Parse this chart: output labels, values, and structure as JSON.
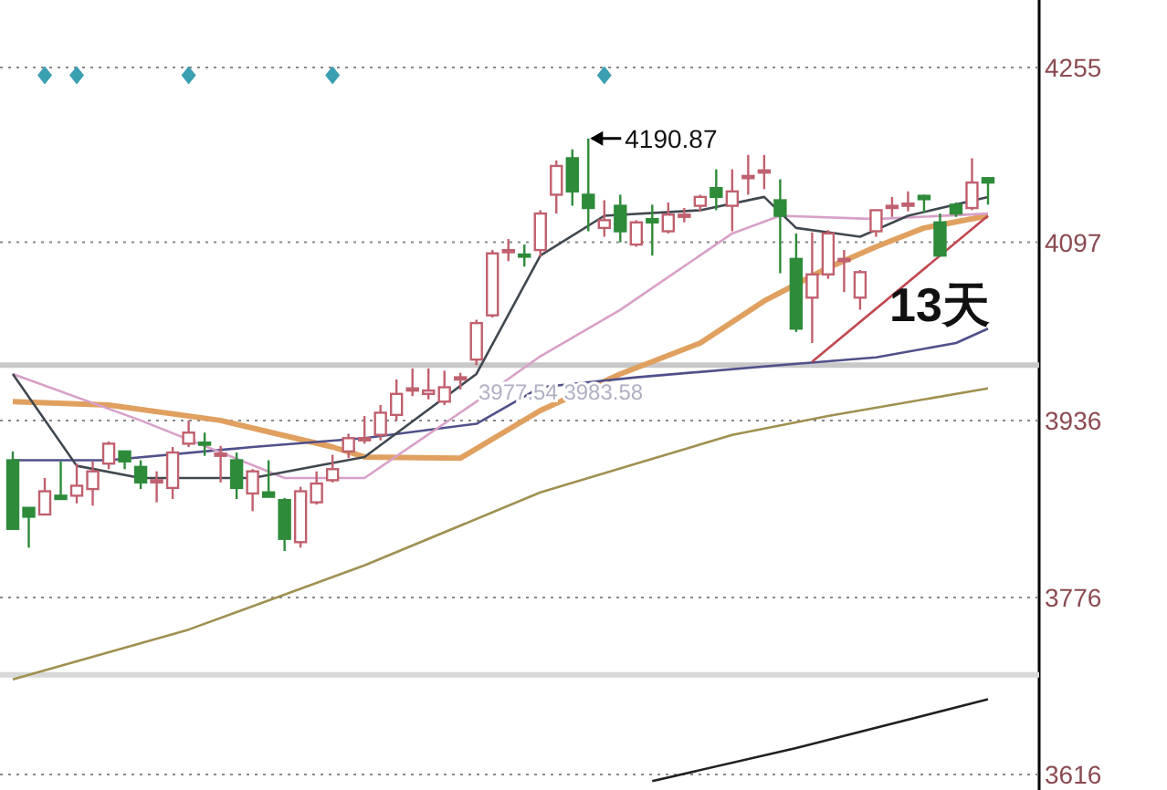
{
  "chart_data": {
    "type": "candlestick",
    "categories": [
      null,
      null,
      null,
      null,
      null,
      null,
      null,
      null,
      null,
      null,
      null,
      null,
      null,
      null,
      null,
      null,
      null,
      null,
      null,
      null,
      null,
      null,
      null,
      null,
      null,
      null,
      null,
      null,
      null,
      null,
      null,
      null,
      null,
      null,
      null,
      null,
      null,
      null,
      null,
      null,
      null,
      null,
      null,
      null,
      null,
      null,
      null,
      null,
      null,
      null,
      null,
      null,
      null,
      null,
      null,
      null,
      null,
      null,
      null,
      null,
      null,
      null
    ],
    "ohlc": [
      [
        3900,
        3908,
        3838,
        3838
      ],
      [
        3857,
        3857,
        3821,
        3849
      ],
      [
        3851,
        3884,
        3851,
        3872
      ],
      [
        3868,
        3899,
        3865,
        3865
      ],
      [
        3868,
        3897,
        3861,
        3877
      ],
      [
        3874,
        3899,
        3859,
        3890
      ],
      [
        3897,
        3917,
        3892,
        3915
      ],
      [
        3908,
        3908,
        3892,
        3899
      ],
      [
        3894,
        3900,
        3874,
        3880
      ],
      [
        3880,
        3890,
        3862,
        3882
      ],
      [
        3875,
        3912,
        3865,
        3907
      ],
      [
        3915,
        3936,
        3912,
        3925
      ],
      [
        3916,
        3925,
        3904,
        3915
      ],
      [
        3905,
        3913,
        3880,
        3906
      ],
      [
        3900,
        3907,
        3865,
        3875
      ],
      [
        3870,
        3892,
        3854,
        3890
      ],
      [
        3871,
        3900,
        3867,
        3867
      ],
      [
        3864,
        3866,
        3818,
        3829
      ],
      [
        3826,
        3876,
        3821,
        3872
      ],
      [
        3862,
        3890,
        3860,
        3879
      ],
      [
        3882,
        3905,
        3880,
        3892
      ],
      [
        3908,
        3924,
        3902,
        3920
      ],
      [
        3918,
        3940,
        3915,
        3920
      ],
      [
        3923,
        3950,
        3918,
        3943
      ],
      [
        3941,
        3973,
        3936,
        3960
      ],
      [
        3963,
        3983,
        3958,
        3965
      ],
      [
        3960,
        3983,
        3955,
        3963
      ],
      [
        3953,
        3981,
        3950,
        3966
      ],
      [
        3973,
        3979,
        3964,
        3975
      ],
      [
        3991,
        4027,
        3986,
        4024
      ],
      [
        4031,
        4090,
        4029,
        4087
      ],
      [
        4089,
        4100,
        4080,
        4090
      ],
      [
        4086,
        4095,
        4075,
        4084
      ],
      [
        4090,
        4126,
        4084,
        4123
      ],
      [
        4140,
        4171,
        4123,
        4166
      ],
      [
        4173,
        4181,
        4130,
        4143
      ],
      [
        4140,
        4190.87,
        4107,
        4128
      ],
      [
        4110,
        4135,
        4102,
        4117
      ],
      [
        4130,
        4140,
        4097,
        4107
      ],
      [
        4095,
        4117,
        4093,
        4115
      ],
      [
        4118,
        4131,
        4085,
        4115
      ],
      [
        4107,
        4133,
        4105,
        4122
      ],
      [
        4121,
        4128,
        4115,
        4122
      ],
      [
        4130,
        4140,
        4125,
        4138
      ],
      [
        4146,
        4163,
        4126,
        4138
      ],
      [
        4130,
        4163,
        4107,
        4143
      ],
      [
        4155,
        4176,
        4140,
        4157
      ],
      [
        4160,
        4176,
        4145,
        4162
      ],
      [
        4135,
        4154,
        4069,
        4121
      ],
      [
        4082,
        4105,
        4016,
        4019
      ],
      [
        4047,
        4106,
        4006,
        4068
      ],
      [
        4068,
        4108,
        4064,
        4105
      ],
      [
        4080,
        4090,
        4052,
        4082
      ],
      [
        4047,
        4072,
        4036,
        4070
      ],
      [
        4107,
        4126,
        4102,
        4126
      ],
      [
        4128,
        4138,
        4120,
        4130
      ],
      [
        4130,
        4143,
        4125,
        4132
      ],
      [
        4139,
        4140,
        4124,
        4136
      ],
      [
        4115,
        4123,
        4085,
        4085
      ],
      [
        4131,
        4133,
        4120,
        4123
      ],
      [
        4128,
        4173,
        4126,
        4151
      ],
      [
        4155,
        4155,
        4131,
        4151
      ]
    ],
    "series": [
      {
        "type": "line",
        "color": "#e0a060",
        "values": [
          3953,
          null,
          null,
          null,
          null,
          null,
          3950,
          null,
          null,
          null,
          null,
          null,
          null,
          3936,
          null,
          null,
          null,
          null,
          null,
          null,
          3912,
          null,
          3903,
          null,
          null,
          null,
          null,
          null,
          3902,
          null,
          null,
          null,
          null,
          3945,
          null,
          null,
          null,
          null,
          3978,
          null,
          null,
          null,
          null,
          4006,
          null,
          null,
          null,
          4044,
          null,
          null,
          null,
          4074,
          null,
          null,
          4093,
          null,
          null,
          4110,
          null,
          null,
          null,
          4121
        ]
      },
      {
        "type": "line",
        "color": "#50508a",
        "values": [
          3900,
          null,
          null,
          null,
          null,
          null,
          3900,
          null,
          null,
          null,
          null,
          null,
          null,
          null,
          null,
          3912,
          null,
          null,
          null,
          null,
          null,
          null,
          3920,
          null,
          null,
          null,
          null,
          null,
          null,
          3933,
          null,
          null,
          null,
          3966,
          null,
          null,
          null,
          null,
          null,
          3975,
          null,
          null,
          null,
          null,
          null,
          null,
          null,
          null,
          3986,
          null,
          null,
          null,
          null,
          null,
          3993,
          null,
          null,
          null,
          null,
          4006,
          null,
          4019
        ]
      },
      {
        "type": "line",
        "color": "#a09050",
        "values": [
          3702,
          null,
          null,
          null,
          null,
          null,
          null,
          null,
          null,
          null,
          null,
          3747,
          null,
          null,
          null,
          null,
          null,
          null,
          null,
          null,
          null,
          null,
          3805,
          null,
          null,
          null,
          null,
          null,
          null,
          null,
          null,
          null,
          null,
          3871,
          null,
          null,
          null,
          null,
          null,
          null,
          null,
          null,
          null,
          null,
          null,
          3923,
          null,
          null,
          null,
          null,
          null,
          3940,
          null,
          null,
          null,
          null,
          null,
          null,
          null,
          null,
          null,
          3965
        ]
      },
      {
        "type": "line",
        "color": "#202020",
        "values": [
          null,
          null,
          null,
          null,
          null,
          null,
          null,
          null,
          null,
          null,
          null,
          null,
          null,
          null,
          null,
          null,
          null,
          null,
          null,
          null,
          null,
          null,
          null,
          null,
          null,
          null,
          null,
          null,
          null,
          null,
          null,
          null,
          null,
          null,
          null,
          null,
          null,
          null,
          null,
          null,
          3610,
          null,
          null,
          null,
          null,
          null,
          null,
          null,
          null,
          3640,
          null,
          null,
          null,
          null,
          null,
          null,
          null,
          null,
          null,
          null,
          null,
          3684
        ]
      },
      {
        "type": "line",
        "color": "#d8a0c8",
        "values": [
          3978,
          null,
          null,
          null,
          null,
          null,
          null,
          null,
          3936,
          null,
          null,
          null,
          null,
          null,
          null,
          null,
          null,
          3884,
          null,
          null,
          null,
          null,
          3884,
          null,
          null,
          null,
          null,
          null,
          null,
          3953,
          null,
          null,
          null,
          3994,
          null,
          null,
          null,
          null,
          4036,
          null,
          null,
          null,
          null,
          null,
          null,
          4105,
          null,
          null,
          4121,
          null,
          null,
          null,
          null,
          null,
          4118,
          null,
          null,
          null,
          null,
          null,
          null,
          4123
        ]
      },
      {
        "type": "line",
        "color": "#404850",
        "values": [
          3978,
          null,
          null,
          null,
          3895,
          null,
          null,
          null,
          3884,
          null,
          null,
          null,
          null,
          null,
          null,
          3884,
          null,
          null,
          null,
          null,
          null,
          null,
          3903,
          null,
          null,
          null,
          null,
          null,
          null,
          3978,
          null,
          null,
          null,
          4085,
          null,
          null,
          null,
          4121,
          null,
          null,
          null,
          null,
          null,
          4126,
          null,
          null,
          null,
          4138,
          null,
          4110,
          null,
          null,
          null,
          4102,
          null,
          null,
          4121,
          null,
          null,
          null,
          null,
          4138
        ]
      },
      {
        "type": "line",
        "color": "#c04850",
        "values": [
          null,
          null,
          null,
          null,
          null,
          null,
          null,
          null,
          null,
          null,
          null,
          null,
          null,
          null,
          null,
          null,
          null,
          null,
          null,
          null,
          null,
          null,
          null,
          null,
          null,
          null,
          null,
          null,
          null,
          null,
          null,
          null,
          null,
          null,
          null,
          null,
          null,
          null,
          null,
          null,
          null,
          null,
          null,
          null,
          null,
          null,
          null,
          null,
          null,
          null,
          3989,
          null,
          null,
          null,
          null,
          null,
          null,
          null,
          null,
          null,
          null,
          4121
        ]
      },
      {
        "type": "scatter",
        "color": "#3a9fb0",
        "marker": "diamond",
        "values": [
          null,
          null,
          4248,
          null,
          4248,
          null,
          null,
          null,
          null,
          null,
          null,
          4248,
          null,
          null,
          null,
          null,
          null,
          null,
          null,
          null,
          4248,
          null,
          null,
          null,
          null,
          null,
          null,
          null,
          null,
          null,
          null,
          null,
          null,
          null,
          null,
          null,
          null,
          4248,
          null,
          null,
          null,
          null,
          null,
          null,
          null,
          null,
          null,
          null,
          null,
          null,
          null,
          null,
          null,
          null,
          null,
          null,
          null,
          null,
          null,
          null,
          null,
          null
        ]
      }
    ],
    "ref_lines": [
      {
        "axis": "y",
        "value": 3986,
        "color": "#c8c8c8"
      },
      {
        "axis": "y",
        "value": 3706,
        "color": "#d8d8d8"
      }
    ],
    "annotations": [
      "4190.87",
      "13天",
      "3977.54  3983.58"
    ],
    "ylim": [
      3602,
      4316
    ],
    "yticks": [
      3616,
      3776,
      3936,
      4097,
      4255
    ],
    "grid": "y"
  }
}
